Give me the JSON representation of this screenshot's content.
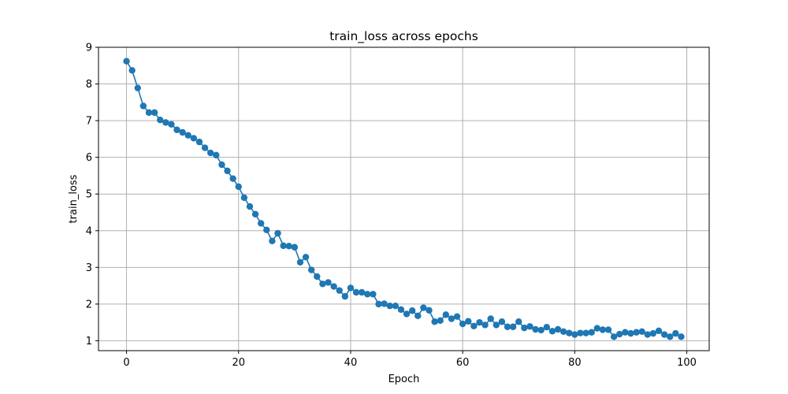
{
  "chart_data": {
    "type": "line",
    "title": "train_loss across epochs",
    "xlabel": "Epoch",
    "ylabel": "train_loss",
    "xlim": [
      -5,
      104
    ],
    "ylim": [
      0.73,
      9.0
    ],
    "xticks": [
      0,
      20,
      40,
      60,
      80,
      100
    ],
    "yticks": [
      1,
      2,
      3,
      4,
      5,
      6,
      7,
      8,
      9
    ],
    "grid": true,
    "marker": "circle",
    "color": "#1f77b4",
    "series": [
      {
        "x": [
          0,
          1,
          2,
          3,
          4,
          5,
          6,
          7,
          8,
          9,
          10,
          11,
          12,
          13,
          14,
          15,
          16,
          17,
          18,
          19,
          20,
          21,
          22,
          23,
          24,
          25,
          26,
          27,
          28,
          29,
          30,
          31,
          32,
          33,
          34,
          35,
          36,
          37,
          38,
          39,
          40,
          41,
          42,
          43,
          44,
          45,
          46,
          47,
          48,
          49,
          50,
          51,
          52,
          53,
          54,
          55,
          56,
          57,
          58,
          59,
          60,
          61,
          62,
          63,
          64,
          65,
          66,
          67,
          68,
          69,
          70,
          71,
          72,
          73,
          74,
          75,
          76,
          77,
          78,
          79,
          80,
          81,
          82,
          83,
          84,
          85,
          86,
          87,
          88,
          89,
          90,
          91,
          92,
          93,
          94,
          95,
          96,
          97,
          98,
          99
        ],
        "values": [
          8.62,
          8.37,
          7.89,
          7.4,
          7.22,
          7.22,
          7.02,
          6.95,
          6.9,
          6.75,
          6.68,
          6.6,
          6.52,
          6.42,
          6.26,
          6.12,
          6.06,
          5.8,
          5.63,
          5.42,
          5.2,
          4.9,
          4.66,
          4.45,
          4.2,
          4.02,
          3.72,
          3.93,
          3.59,
          3.58,
          3.55,
          3.14,
          3.28,
          2.93,
          2.75,
          2.55,
          2.59,
          2.48,
          2.37,
          2.21,
          2.44,
          2.32,
          2.32,
          2.27,
          2.27,
          2.0,
          2.01,
          1.95,
          1.95,
          1.85,
          1.73,
          1.82,
          1.68,
          1.9,
          1.83,
          1.52,
          1.55,
          1.71,
          1.6,
          1.66,
          1.46,
          1.53,
          1.4,
          1.5,
          1.43,
          1.6,
          1.43,
          1.52,
          1.38,
          1.38,
          1.52,
          1.35,
          1.39,
          1.31,
          1.29,
          1.37,
          1.26,
          1.31,
          1.25,
          1.21,
          1.17,
          1.21,
          1.21,
          1.23,
          1.34,
          1.3,
          1.3,
          1.11,
          1.18,
          1.23,
          1.2,
          1.23,
          1.25,
          1.17,
          1.2,
          1.27,
          1.17,
          1.11,
          1.2,
          1.11
        ]
      }
    ]
  }
}
